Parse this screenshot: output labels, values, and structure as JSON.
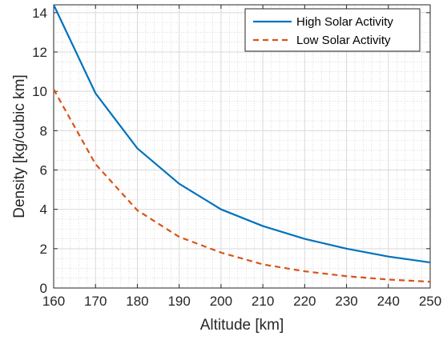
{
  "chart_data": {
    "type": "line",
    "title": "",
    "xlabel": "Altitude [km]",
    "ylabel": "Density [kg/cubic km]",
    "xlim": [
      160,
      250
    ],
    "ylim": [
      0,
      14.4
    ],
    "x_ticks": [
      160,
      170,
      180,
      190,
      200,
      210,
      220,
      230,
      240,
      250
    ],
    "y_ticks": [
      0,
      2,
      4,
      6,
      8,
      10,
      12,
      14
    ],
    "grid": "major and minor (dotted minor)",
    "legend_position": "top-right",
    "x": [
      160,
      170,
      180,
      190,
      200,
      210,
      220,
      230,
      240,
      250
    ],
    "series": [
      {
        "name": "High Solar Activity",
        "style": "solid",
        "color": "#0072BD",
        "values": [
          14.4,
          9.9,
          7.1,
          5.3,
          4.0,
          3.15,
          2.5,
          2.0,
          1.6,
          1.3
        ]
      },
      {
        "name": "Low Solar Activity",
        "style": "dashed",
        "color": "#D95319",
        "values": [
          10.1,
          6.3,
          3.95,
          2.6,
          1.8,
          1.2,
          0.85,
          0.6,
          0.43,
          0.32
        ]
      }
    ]
  }
}
